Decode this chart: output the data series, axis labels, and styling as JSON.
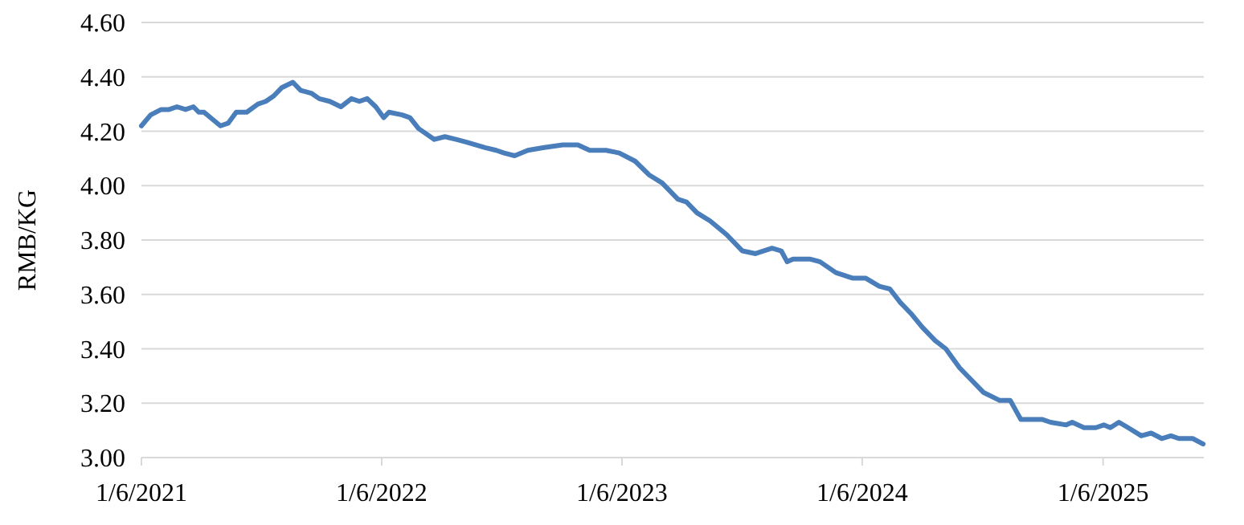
{
  "chart_data": {
    "type": "line",
    "ylabel": "RMB/KG",
    "grid": "y",
    "marker": "none",
    "line_style": "solid",
    "xlim": [
      "2021-01-06",
      "2025-06-08"
    ],
    "xticks": [
      {
        "value": "2021-01-06",
        "label": "1/6/2021"
      },
      {
        "value": "2022-01-06",
        "label": "1/6/2022"
      },
      {
        "value": "2023-01-06",
        "label": "1/6/2023"
      },
      {
        "value": "2024-01-06",
        "label": "1/6/2024"
      },
      {
        "value": "2025-01-06",
        "label": "1/6/2025"
      }
    ],
    "ylim": [
      3.0,
      4.6
    ],
    "yticks": [
      {
        "value": 3.0,
        "label": "3.00"
      },
      {
        "value": 3.2,
        "label": "3.20"
      },
      {
        "value": 3.4,
        "label": "3.40"
      },
      {
        "value": 3.6,
        "label": "3.60"
      },
      {
        "value": 3.8,
        "label": "3.80"
      },
      {
        "value": 4.0,
        "label": "4.00"
      },
      {
        "value": 4.2,
        "label": "4.20"
      },
      {
        "value": 4.4,
        "label": "4.40"
      },
      {
        "value": 4.6,
        "label": "4.60"
      }
    ],
    "x": [
      "2021-01-06",
      "2021-01-20",
      "2021-02-05",
      "2021-02-17",
      "2021-03-01",
      "2021-03-14",
      "2021-03-26",
      "2021-04-03",
      "2021-04-11",
      "2021-05-06",
      "2021-05-18",
      "2021-05-30",
      "2021-06-15",
      "2021-07-02",
      "2021-07-14",
      "2021-07-26",
      "2021-08-07",
      "2021-08-24",
      "2021-09-05",
      "2021-09-21",
      "2021-10-03",
      "2021-10-19",
      "2021-11-05",
      "2021-11-21",
      "2021-12-03",
      "2021-12-15",
      "2021-12-28",
      "2022-01-09",
      "2022-01-17",
      "2022-02-06",
      "2022-02-18",
      "2022-03-03",
      "2022-03-27",
      "2022-04-12",
      "2022-04-29",
      "2022-05-15",
      "2022-06-12",
      "2022-06-29",
      "2022-07-11",
      "2022-07-27",
      "2022-08-16",
      "2022-09-10",
      "2022-10-08",
      "2022-10-31",
      "2022-11-18",
      "2022-12-13",
      "2023-01-02",
      "2023-01-26",
      "2023-02-16",
      "2023-03-08",
      "2023-04-01",
      "2023-04-14",
      "2023-04-30",
      "2023-05-20",
      "2023-06-14",
      "2023-07-08",
      "2023-07-28",
      "2023-08-22",
      "2023-09-05",
      "2023-09-14",
      "2023-09-23",
      "2023-10-18",
      "2023-11-03",
      "2023-11-27",
      "2023-12-22",
      "2024-01-11",
      "2024-02-01",
      "2024-02-17",
      "2024-03-04",
      "2024-03-20",
      "2024-04-06",
      "2024-04-26",
      "2024-05-12",
      "2024-06-02",
      "2024-06-18",
      "2024-07-08",
      "2024-08-02",
      "2024-08-18",
      "2024-09-03",
      "2024-10-06",
      "2024-10-18",
      "2024-11-11",
      "2024-11-20",
      "2024-12-08",
      "2024-12-26",
      "2025-01-07",
      "2025-01-17",
      "2025-01-30",
      "2025-02-13",
      "2025-03-05",
      "2025-03-20",
      "2025-04-05",
      "2025-04-19",
      "2025-05-01",
      "2025-05-22",
      "2025-06-07"
    ],
    "series": [
      {
        "color": "#4a7ebb",
        "values": [
          4.22,
          4.26,
          4.28,
          4.28,
          4.29,
          4.28,
          4.29,
          4.27,
          4.27,
          4.22,
          4.23,
          4.27,
          4.27,
          4.3,
          4.31,
          4.33,
          4.36,
          4.38,
          4.35,
          4.34,
          4.32,
          4.31,
          4.29,
          4.32,
          4.31,
          4.32,
          4.29,
          4.25,
          4.27,
          4.26,
          4.25,
          4.21,
          4.17,
          4.18,
          4.17,
          4.16,
          4.14,
          4.13,
          4.12,
          4.11,
          4.13,
          4.14,
          4.15,
          4.15,
          4.13,
          4.13,
          4.12,
          4.09,
          4.04,
          4.01,
          3.95,
          3.94,
          3.9,
          3.87,
          3.82,
          3.76,
          3.75,
          3.77,
          3.76,
          3.72,
          3.73,
          3.73,
          3.72,
          3.68,
          3.66,
          3.66,
          3.63,
          3.62,
          3.57,
          3.53,
          3.48,
          3.43,
          3.4,
          3.33,
          3.29,
          3.24,
          3.21,
          3.21,
          3.14,
          3.14,
          3.13,
          3.12,
          3.13,
          3.11,
          3.11,
          3.12,
          3.11,
          3.13,
          3.11,
          3.08,
          3.09,
          3.07,
          3.08,
          3.07,
          3.07,
          3.05
        ]
      }
    ]
  }
}
